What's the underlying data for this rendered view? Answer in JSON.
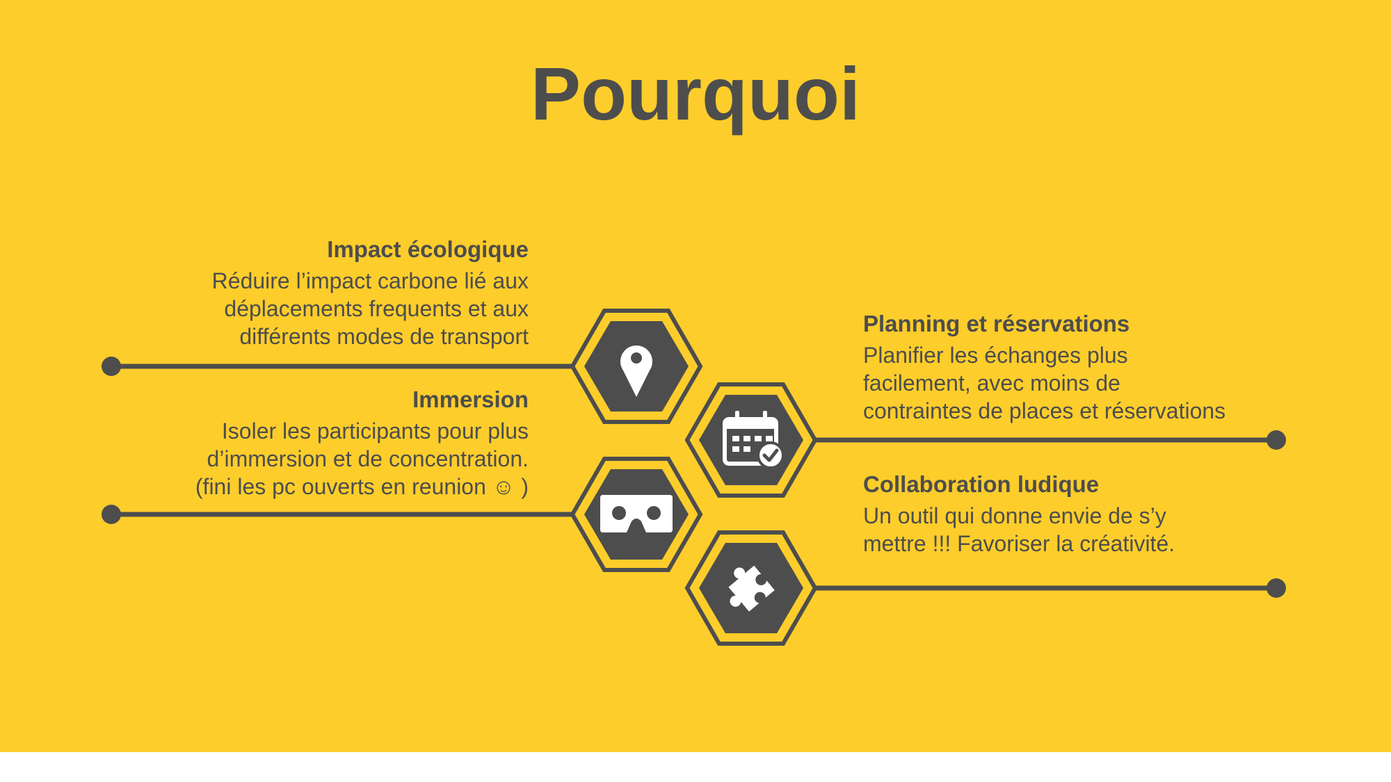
{
  "title": "Pourquoi",
  "colors": {
    "background": "#FDCD2B",
    "dark": "#4D4D4D",
    "white": "#FFFFFF"
  },
  "items": [
    {
      "title": "Impact écologique",
      "lines": [
        "Réduire l’impact carbone lié aux",
        "déplacements frequents et aux",
        "différents modes de transport"
      ],
      "icon": "map-pin-icon"
    },
    {
      "title": "Immersion",
      "lines": [
        "Isoler les participants pour plus",
        "d’immersion et de concentration.",
        "(fini les pc ouverts en reunion ☺ )"
      ],
      "icon": "vr-headset-icon"
    },
    {
      "title": "Planning et réservations",
      "lines": [
        "Planifier les échanges plus",
        "facilement, avec moins de",
        "contraintes de places et réservations"
      ],
      "icon": "calendar-check-icon"
    },
    {
      "title": "Collaboration ludique",
      "lines": [
        "Un outil qui donne envie de s’y",
        "mettre !!! Favoriser la créativité."
      ],
      "icon": "puzzle-icon"
    }
  ]
}
